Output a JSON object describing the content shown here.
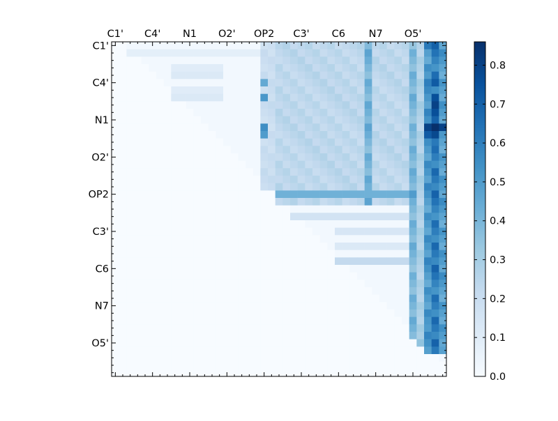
{
  "chart_data": {
    "type": "heatmap",
    "title": "",
    "xlabel": "",
    "ylabel": "",
    "size": 45,
    "upper_triangular": true,
    "x_tick_labels": [
      "C1'",
      "C4'",
      "N1",
      "O2'",
      "OP2",
      "C3'",
      "C6",
      "N7",
      "O5'"
    ],
    "y_tick_labels": [
      "C1'",
      "C4'",
      "N1",
      "O2'",
      "OP2",
      "C3'",
      "C6",
      "N7",
      "O5'"
    ],
    "tick_label_indices": [
      0,
      5,
      10,
      15,
      20,
      25,
      30,
      35,
      40
    ],
    "colorbar": {
      "colormap": "Blues",
      "min": 0.0,
      "max": 0.86,
      "tick_values": [
        0.0,
        0.1,
        0.2,
        0.3,
        0.4,
        0.5,
        0.6,
        0.7,
        0.8
      ],
      "tick_labels": [
        "0.0",
        "0.1",
        "0.2",
        "0.3",
        "0.4",
        "0.5",
        "0.6",
        "0.7",
        "0.8"
      ]
    },
    "default_value": 0.02,
    "column_bands": [
      {
        "cols": [
          20,
          21
        ],
        "rows": [
          0,
          19
        ],
        "value": 0.2
      },
      {
        "cols": [
          22,
          33
        ],
        "rows": [
          0,
          21
        ],
        "value": 0.24
      },
      {
        "cols": [
          34,
          34
        ],
        "rows": [
          0,
          21
        ],
        "value": 0.42
      },
      {
        "cols": [
          35,
          41
        ],
        "rows": [
          0,
          21
        ],
        "value": 0.24
      },
      {
        "cols": [
          40,
          40
        ],
        "rows": [
          0,
          41
        ],
        "value": 0.4
      },
      {
        "cols": [
          42,
          42
        ],
        "rows": [
          0,
          41
        ],
        "value": 0.52
      },
      {
        "cols": [
          43,
          43
        ],
        "rows": [
          0,
          41
        ],
        "value": 0.62
      },
      {
        "cols": [
          44,
          44
        ],
        "rows": [
          0,
          41
        ],
        "value": 0.5
      },
      {
        "cols": [
          41,
          41
        ],
        "rows": [
          0,
          41
        ],
        "value": 0.28
      }
    ],
    "row_bands": [
      {
        "rows": [
          1,
          1
        ],
        "cols": [
          2,
          19
        ],
        "value": 0.08
      },
      {
        "rows": [
          3,
          3
        ],
        "cols": [
          8,
          14
        ],
        "value": 0.1
      },
      {
        "rows": [
          4,
          4
        ],
        "cols": [
          8,
          14
        ],
        "value": 0.12
      },
      {
        "rows": [
          6,
          6
        ],
        "cols": [
          8,
          14
        ],
        "value": 0.1
      },
      {
        "rows": [
          7,
          7
        ],
        "cols": [
          8,
          14
        ],
        "value": 0.12
      },
      {
        "rows": [
          20,
          20
        ],
        "cols": [
          22,
          40
        ],
        "value": 0.42
      },
      {
        "rows": [
          23,
          23
        ],
        "cols": [
          24,
          40
        ],
        "value": 0.16
      },
      {
        "rows": [
          25,
          25
        ],
        "cols": [
          30,
          40
        ],
        "value": 0.14
      },
      {
        "rows": [
          27,
          27
        ],
        "cols": [
          30,
          40
        ],
        "value": 0.12
      },
      {
        "rows": [
          29,
          29
        ],
        "cols": [
          30,
          40
        ],
        "value": 0.22
      }
    ],
    "hot_cells": [
      {
        "row": 0,
        "col": 42,
        "value": 0.62
      },
      {
        "row": 0,
        "col": 43,
        "value": 0.7
      },
      {
        "row": 5,
        "col": 43,
        "value": 0.72
      },
      {
        "row": 5,
        "col": 42,
        "value": 0.6
      },
      {
        "row": 7,
        "col": 43,
        "value": 0.76
      },
      {
        "row": 8,
        "col": 43,
        "value": 0.8
      },
      {
        "row": 9,
        "col": 43,
        "value": 0.76
      },
      {
        "row": 11,
        "col": 42,
        "value": 0.8
      },
      {
        "row": 11,
        "col": 43,
        "value": 0.86
      },
      {
        "row": 11,
        "col": 44,
        "value": 0.8
      },
      {
        "row": 12,
        "col": 42,
        "value": 0.72
      },
      {
        "row": 12,
        "col": 43,
        "value": 0.78
      },
      {
        "row": 13,
        "col": 43,
        "value": 0.62
      },
      {
        "row": 7,
        "col": 20,
        "value": 0.52
      },
      {
        "row": 11,
        "col": 20,
        "value": 0.55
      },
      {
        "row": 12,
        "col": 20,
        "value": 0.5
      },
      {
        "row": 5,
        "col": 20,
        "value": 0.45
      },
      {
        "row": 20,
        "col": 40,
        "value": 0.5
      },
      {
        "row": 38,
        "col": 42,
        "value": 0.5
      },
      {
        "row": 41,
        "col": 43,
        "value": 0.62
      },
      {
        "row": 41,
        "col": 44,
        "value": 0.48
      },
      {
        "row": 40,
        "col": 41,
        "value": 0.35
      }
    ]
  }
}
